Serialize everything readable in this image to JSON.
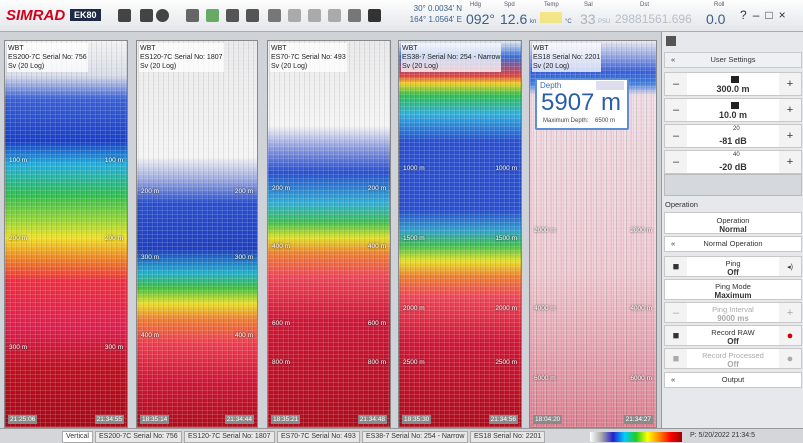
{
  "toolbar": {
    "logo": "SIMRAD",
    "product": "EK80",
    "lat": "30° 0.0034' N",
    "lon": "164° 1.0564' E",
    "heading_label": "Hdg",
    "heading": "092°",
    "speed_label": "Spd",
    "speed": "12.6",
    "speed_unit": "kn",
    "temp_label": "Temp",
    "temp_unit": "°C",
    "sal_label": "Sal",
    "salinity": "33",
    "sal_unit": "PSU",
    "dst_label": "Dst",
    "distance": "29881561.696",
    "roll_label": "Roll",
    "roll": "0.0",
    "controls": [
      "?",
      "–",
      "□",
      "×"
    ]
  },
  "panels": [
    {
      "transceiver": "WBT",
      "name": "ES200-7C Serial No: 756",
      "variable": "Sv (20 Log)",
      "depths": [
        "100 m",
        "200 m",
        "300 m"
      ],
      "start_time": "21:25:06",
      "end_time": "21:34:55"
    },
    {
      "transceiver": "WBT",
      "name": "ES120-7C Serial No: 1807",
      "variable": "Sv (20 Log)",
      "depths": [
        "200 m",
        "300 m",
        "400 m"
      ],
      "start_time": "18:35:14",
      "end_time": "21:34:44"
    },
    {
      "transceiver": "WBT",
      "name": "ES70-7C Serial No: 493",
      "variable": "Sv (20 Log)",
      "depths": [
        "200 m",
        "400 m",
        "600 m",
        "800 m"
      ],
      "start_time": "18:35:21",
      "end_time": "21:34:48"
    },
    {
      "transceiver": "WBT",
      "name": "ES38-7 Serial No: 254 - Narrow",
      "variable": "Sv (20 Log)",
      "depths": [
        "1000 m",
        "1500 m",
        "2000 m",
        "2500 m"
      ],
      "start_time": "18:35:30",
      "end_time": "21:34:56"
    },
    {
      "transceiver": "WBT",
      "name": "ES18 Serial No: 2201",
      "variable": "Sv (20 Log)",
      "depths": [
        "2000 m",
        "4000 m",
        "6000 m"
      ],
      "start_time": "18:04:20",
      "end_time": "21:34:27"
    }
  ],
  "depth_popup": {
    "title": "Depth",
    "value": "5907 m",
    "max_label": "Maximum Depth:",
    "max_value": "6500 m"
  },
  "settings": {
    "title": "User Settings",
    "rows": [
      {
        "value": "300.0 m"
      },
      {
        "value": "10.0 m"
      },
      {
        "slope": "20",
        "value": "-81 dB"
      },
      {
        "slope": "40",
        "value": "-20 dB"
      }
    ],
    "minus": "–",
    "plus": "+"
  },
  "operation": {
    "heading": "Operation",
    "mode_label": "Operation",
    "mode_value": "Normal",
    "normal_operation": "Normal Operation",
    "ping_label": "Ping",
    "ping_value": "Off",
    "ping_mode_label": "Ping Mode",
    "ping_mode_value": "Maximum",
    "interval_label": "Ping Interval",
    "interval_value": "9000 ms",
    "raw_label": "Record RAW",
    "raw_value": "Off",
    "processed_label": "Record Processed",
    "processed_value": "Off",
    "output": "Output",
    "collapse": "«"
  },
  "tabs": [
    "Vertical",
    "ES200-7C Serial No: 756",
    "ES120-7C Serial No: 1807",
    "ES70-7C Serial No: 493",
    "ES38-7 Serial No: 254 - Narrow",
    "ES18 Serial No: 2201"
  ],
  "status": "P: 5/20/2022 21:34:5"
}
